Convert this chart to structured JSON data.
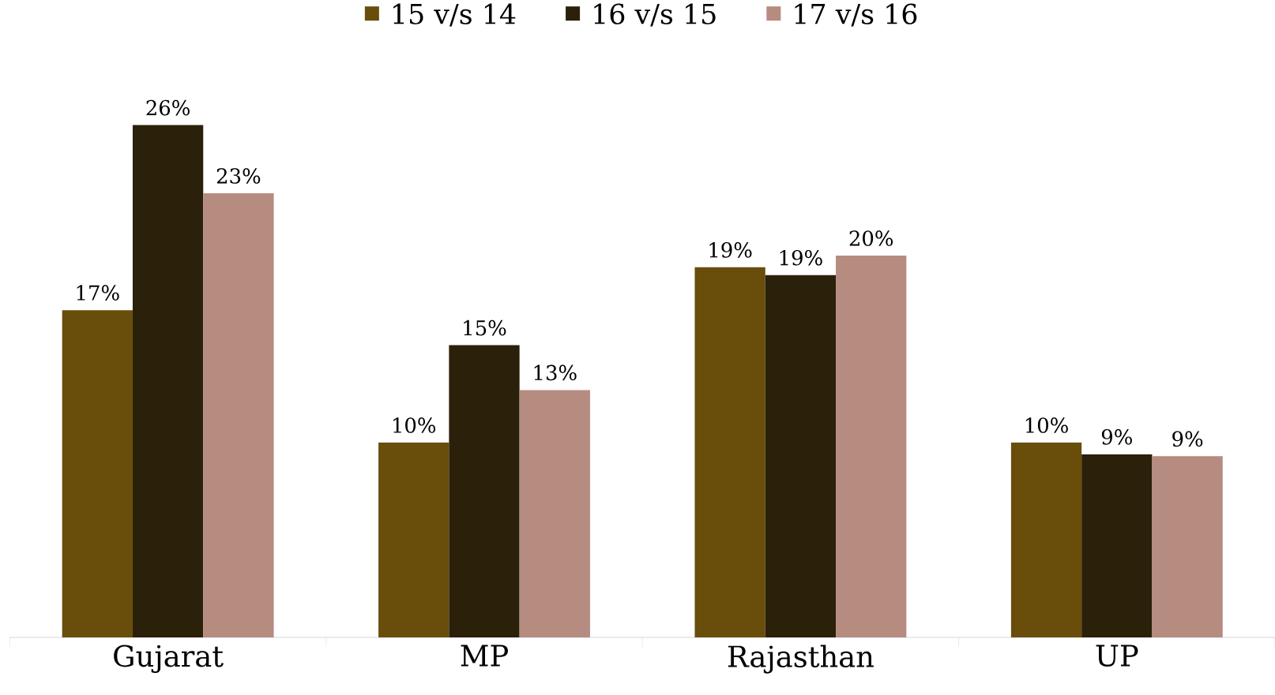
{
  "chart_data": {
    "type": "bar",
    "categories": [
      "Gujarat",
      "MP",
      "Rajasthan",
      "UP"
    ],
    "series": [
      {
        "name": "15 v/s 14",
        "color": "#684d0b",
        "values": [
          16.8,
          10.0,
          19.0,
          10.0
        ],
        "value_labels": [
          "17%",
          "10%",
          "19%",
          "10%"
        ]
      },
      {
        "name": "16 v/s 15",
        "color": "#2b200a",
        "values": [
          26.3,
          15.0,
          18.6,
          9.4
        ],
        "value_labels": [
          "26%",
          "15%",
          "19%",
          "9%"
        ]
      },
      {
        "name": "17 v/s 16",
        "color": "#b68b80",
        "values": [
          22.8,
          12.7,
          19.6,
          9.3
        ],
        "value_labels": [
          "23%",
          "13%",
          "20%",
          "9%"
        ]
      }
    ],
    "legend": "top",
    "tick_labels": "x"
  }
}
